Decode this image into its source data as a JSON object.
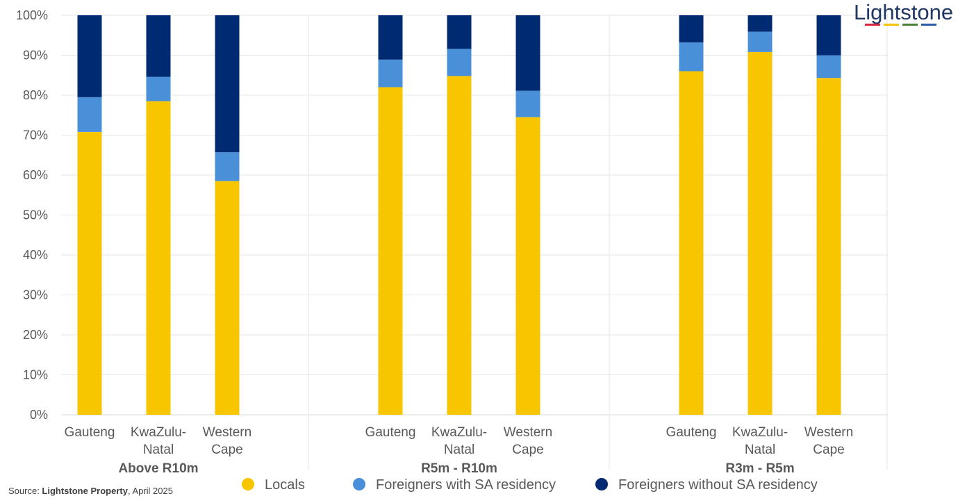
{
  "logo": {
    "text": "Lightstone",
    "bar_colors": [
      "#d7263d",
      "#f5c400",
      "#4a7f3a",
      "#2a5caa"
    ]
  },
  "source": {
    "prefix": "Source: ",
    "name": "Lightstone Property",
    "suffix": ", April 2025"
  },
  "chart_data": {
    "type": "bar",
    "stacked": true,
    "title": "",
    "xlabel": "",
    "ylabel": "",
    "ylim": [
      0,
      100
    ],
    "y_ticks": [
      "0%",
      "10%",
      "20%",
      "30%",
      "40%",
      "50%",
      "60%",
      "70%",
      "80%",
      "90%",
      "100%"
    ],
    "grid": true,
    "legend_position": "bottom",
    "groups": [
      {
        "label": "Above R10m",
        "categories": [
          [
            "Gauteng"
          ],
          [
            "KwaZulu-",
            "Natal"
          ],
          [
            "Western",
            "Cape"
          ]
        ]
      },
      {
        "label": "R5m - R10m",
        "categories": [
          [
            "Gauteng"
          ],
          [
            "KwaZulu-",
            "Natal"
          ],
          [
            "Western",
            "Cape"
          ]
        ]
      },
      {
        "label": "R3m - R5m",
        "categories": [
          [
            "Gauteng"
          ],
          [
            "KwaZulu-",
            "Natal"
          ],
          [
            "Western",
            "Cape"
          ]
        ]
      }
    ],
    "series": [
      {
        "name": "Locals",
        "color": "#f7c600",
        "values": [
          70.8,
          78.5,
          58.5,
          82.0,
          84.8,
          74.5,
          86.0,
          90.8,
          84.3
        ]
      },
      {
        "name": "Foreigners with SA residency",
        "color": "#4a90d9",
        "values": [
          8.7,
          6.1,
          7.2,
          6.9,
          6.8,
          6.6,
          7.2,
          5.1,
          5.7
        ]
      },
      {
        "name": "Foreigners without SA residency",
        "color": "#002b73",
        "values": [
          20.5,
          15.4,
          34.3,
          11.1,
          8.4,
          18.9,
          6.8,
          4.1,
          10.0
        ]
      }
    ]
  }
}
